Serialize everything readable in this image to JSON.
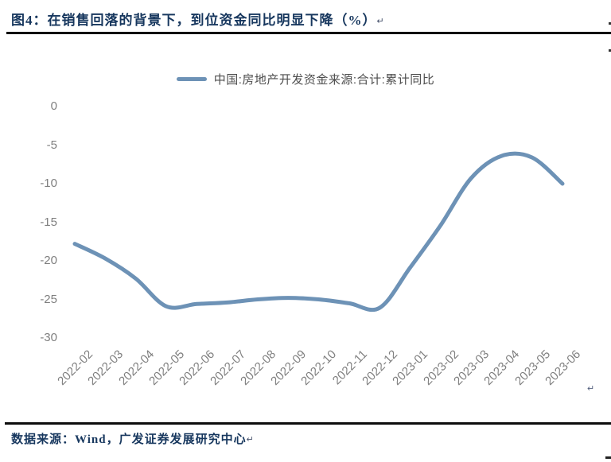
{
  "page": {
    "title": "图4：在销售回落的背景下，到位资金同比明显下降（%）",
    "paragraph_mark": "↵",
    "footer_source": "数据来源：Wind，广发证券发展研究中心",
    "colors": {
      "title_navy": "#17375E",
      "line_blue": "#6D92B6",
      "axis_gray": "#7f7f7f",
      "rule_black": "#0d0d0d"
    }
  },
  "chart_data": {
    "type": "line",
    "title": "",
    "legend": [
      "中国:房地产开发资金来源:合计:累计同比"
    ],
    "legend_position": "top-center",
    "grid": false,
    "smooth": true,
    "line_color": "#6D92B6",
    "line_width": 5,
    "xlabel": "",
    "ylabel": "",
    "ylim": [
      -30,
      0
    ],
    "yticks": [
      0,
      -5,
      -10,
      -15,
      -20,
      -25,
      -30
    ],
    "categories": [
      "2022-02",
      "2022-03",
      "2022-04",
      "2022-05",
      "2022-06",
      "2022-07",
      "2022-08",
      "2022-09",
      "2022-10",
      "2022-11",
      "2022-12",
      "2023-01",
      "2023-02",
      "2023-03",
      "2023-04",
      "2023-05",
      "2023-06"
    ],
    "series": [
      {
        "name": "中国:房地产开发资金来源:合计:累计同比",
        "values": [
          -17.8,
          -19.7,
          -22.3,
          -25.9,
          -25.6,
          -25.4,
          -25.0,
          -24.8,
          -25.0,
          -25.5,
          -26.1,
          -20.9,
          -15.4,
          -9.3,
          -6.4,
          -6.6,
          -10.0
        ]
      }
    ]
  }
}
